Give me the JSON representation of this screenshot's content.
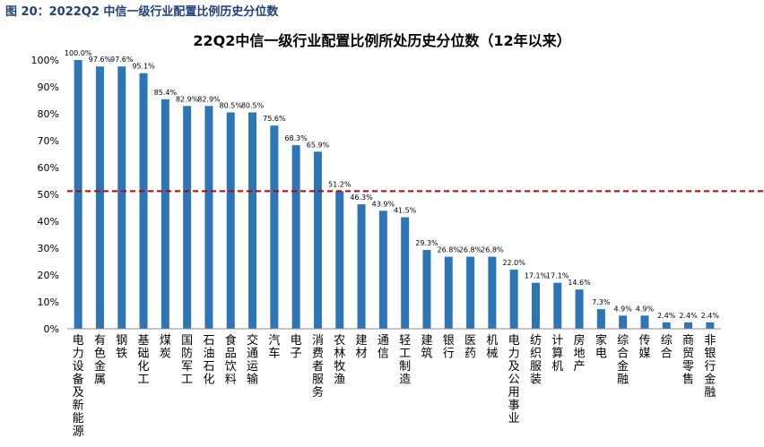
{
  "figure_caption": "图 20：2022Q2 中信一级行业配置比例历史分位数",
  "colors": {
    "bar": "#2e75b6",
    "reference_line": "#c00000",
    "caption": "#1f3f7a"
  },
  "chart_data": {
    "type": "bar",
    "title": "22Q2中信一级行业配置比例所处历史分位数（12年以来）",
    "xlabel": "",
    "ylabel": "",
    "ylim": [
      0,
      100
    ],
    "yticks": [
      "0%",
      "10%",
      "20%",
      "30%",
      "40%",
      "50%",
      "60%",
      "70%",
      "80%",
      "90%",
      "100%"
    ],
    "grid": false,
    "reference_line": {
      "value": 51.2,
      "style": "dashed"
    },
    "categories": [
      "电力设备及新能源",
      "有色金属",
      "钢铁",
      "基础化工",
      "煤炭",
      "国防军工",
      "石油石化",
      "食品饮料",
      "交通运输",
      "汽车",
      "电子",
      "消费者服务",
      "农林牧渔",
      "建材",
      "通信",
      "轻工制造",
      "建筑",
      "银行",
      "医药",
      "机械",
      "电力及公用事业",
      "纺织服装",
      "计算机",
      "房地产",
      "家电",
      "综合金融",
      "传媒",
      "综合",
      "商贸零售",
      "非银行金融"
    ],
    "values": [
      100.0,
      97.6,
      97.6,
      95.1,
      85.4,
      82.9,
      82.9,
      80.5,
      80.5,
      75.6,
      68.3,
      65.9,
      51.2,
      46.3,
      43.9,
      41.5,
      29.3,
      26.8,
      26.8,
      26.8,
      22.0,
      17.1,
      17.1,
      14.6,
      7.3,
      4.9,
      4.9,
      2.4,
      2.4,
      2.4
    ],
    "data_labels": [
      "100.0%",
      "97.6%",
      "97.6%",
      "95.1%",
      "85.4%",
      "82.9%",
      "82.9%",
      "80.5%",
      "80.5%",
      "75.6%",
      "68.3%",
      "65.9%",
      "51.2%",
      "46.3%",
      "43.9%",
      "41.5%",
      "29.3%",
      "26.8%",
      "26.8%",
      "26.8%",
      "22.0%",
      "17.1%",
      "17.1%",
      "14.6%",
      "7.3%",
      "4.9%",
      "4.9%",
      "2.4%",
      "2.4%",
      "2.4%"
    ]
  }
}
